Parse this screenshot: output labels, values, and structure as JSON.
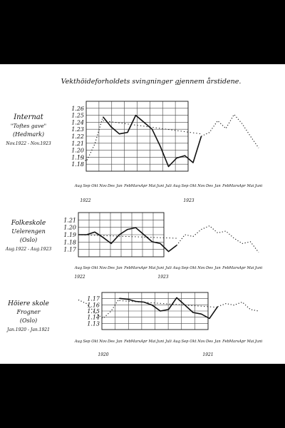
{
  "title": "Vekthöideforholdets svingninger gjennem årstidene.",
  "month_labels": [
    "Aug",
    "Sep",
    "Okt",
    "Nov",
    "Des",
    "Jan",
    "Feb",
    "Mars",
    "Apr",
    "Mai",
    "Juni",
    "Juli",
    "Aug",
    "Sep",
    "Okt",
    "Nov",
    "Des",
    "Jan",
    "Feb",
    "Mars",
    "Apr",
    "Mai",
    "Juni"
  ],
  "chart_data": [
    {
      "type": "line",
      "name": "internat",
      "label_lines": [
        "Internat",
        "\"Toftes gave\"",
        "(Hedmark)",
        "Nov.1922 - Nov.1923"
      ],
      "year_labels": [
        "1922",
        "1923"
      ],
      "y_ticks": [
        "1.26",
        "1.25",
        "1.24",
        "1.23",
        "1.22",
        "1.21",
        "1.20",
        "1.19",
        "1.18"
      ],
      "ylim": [
        1.175,
        1.265
      ],
      "x_range": [
        0,
        22
      ],
      "measured": {
        "x": [
          3,
          4,
          5,
          6,
          7,
          8,
          9,
          10,
          11,
          12,
          13,
          14,
          15
        ],
        "y": [
          1.245,
          1.232,
          1.223,
          1.225,
          1.247,
          1.238,
          1.229,
          1.207,
          1.181,
          1.192,
          1.195,
          1.186,
          1.22
        ]
      },
      "seasonal": {
        "x": [
          0,
          1,
          2,
          3
        ],
        "y": [
          1.195,
          1.188,
          1.21,
          1.245
        ]
      },
      "seasonal_after": {
        "x": [
          15,
          16,
          17,
          18,
          19,
          20,
          21,
          22
        ],
        "y": [
          1.22,
          1.225,
          1.24,
          1.23,
          1.248,
          1.236,
          1.22,
          1.205
        ]
      },
      "trend": {
        "x": [
          3,
          15
        ],
        "y": [
          1.24,
          1.223
        ]
      }
    },
    {
      "type": "line",
      "name": "folkeskole",
      "label_lines": [
        "Folkeskole",
        "Uelerengen",
        "(Oslo)",
        "Aug.1922 - Aug.1923"
      ],
      "year_labels": [
        "1922",
        "1923"
      ],
      "y_ticks": [
        "1.21",
        "1.20",
        "1.19",
        "1.18",
        "1.17"
      ],
      "ylim": [
        1.165,
        1.215
      ],
      "x_range": [
        0,
        22
      ],
      "measured": {
        "x": [
          0,
          1,
          2,
          3,
          4,
          5,
          6,
          7,
          8,
          9,
          10,
          11,
          12
        ],
        "y": [
          1.19,
          1.19,
          1.193,
          1.187,
          1.18,
          1.19,
          1.196,
          1.198,
          1.19,
          1.182,
          1.18,
          1.171,
          1.178
        ]
      },
      "seasonal": {
        "x": [],
        "y": []
      },
      "seasonal_after": {
        "x": [
          12,
          13,
          14,
          15,
          16,
          17,
          18,
          19,
          20,
          21,
          22
        ],
        "y": [
          1.178,
          1.19,
          1.188,
          1.196,
          1.2,
          1.192,
          1.194,
          1.186,
          1.18,
          1.182,
          1.17
        ]
      },
      "trend": {
        "x": [
          0,
          12
        ],
        "y": [
          1.19,
          1.186
        ]
      }
    },
    {
      "type": "line",
      "name": "hoiere-skole",
      "label_lines": [
        "Höiere skole",
        "Frogner",
        "(Oslo)",
        "Jan.1920 - Jan.1921"
      ],
      "year_labels": [
        "1920",
        "1921"
      ],
      "y_ticks": [
        "1.17",
        "1.16",
        "1.15",
        "1.14",
        "1.13"
      ],
      "ylim": [
        1.125,
        1.175
      ],
      "x_range": [
        0,
        22
      ],
      "measured": {
        "x": [
          5,
          6,
          7,
          8,
          9,
          10,
          11,
          12,
          13,
          14,
          15,
          16,
          17
        ],
        "y": [
          1.167,
          1.166,
          1.163,
          1.162,
          1.158,
          1.15,
          1.152,
          1.168,
          1.158,
          1.148,
          1.146,
          1.14,
          1.156
        ]
      },
      "seasonal": {
        "x": [
          0,
          1,
          2,
          3,
          4,
          5
        ],
        "y": [
          1.165,
          1.16,
          1.148,
          1.14,
          1.15,
          1.167
        ]
      },
      "seasonal_after": {
        "x": [
          17,
          18,
          19,
          20,
          21,
          22
        ],
        "y": [
          1.156,
          1.16,
          1.158,
          1.162,
          1.152,
          1.15
        ]
      },
      "trend": {
        "x": [
          5,
          17
        ],
        "y": [
          1.164,
          1.155
        ]
      }
    }
  ]
}
